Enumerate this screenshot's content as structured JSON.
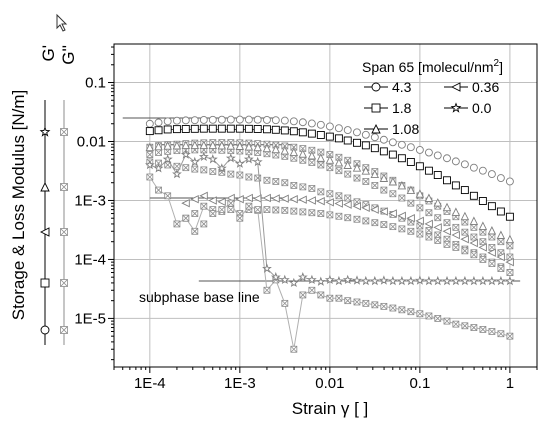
{
  "chart_data": {
    "type": "scatter",
    "xscale": "log",
    "yscale": "log",
    "xlabel": "Strain γ [ ]",
    "ylabel": "Storage & Loss Modulus [N/m]",
    "xlim": [
      4e-05,
      2
    ],
    "ylim": [
      1.5e-06,
      0.45
    ],
    "x_ticks": [
      {
        "value": 0.0001,
        "label": "1E-4"
      },
      {
        "value": 0.001,
        "label": "1E-3"
      },
      {
        "value": 0.01,
        "label": "0.01"
      },
      {
        "value": 0.1,
        "label": "0.1"
      },
      {
        "value": 1,
        "label": "1"
      }
    ],
    "y_ticks": [
      {
        "value": 1e-05,
        "label": "1E-5"
      },
      {
        "value": 0.0001,
        "label": "1E-4"
      },
      {
        "value": 0.001,
        "label": "1E-3"
      },
      {
        "value": 0.01,
        "label": "0.01"
      },
      {
        "value": 0.1,
        "label": "0.1"
      }
    ],
    "grid": true,
    "legend": {
      "title": "Span 65 [molecul/nm",
      "title_sup": "2",
      "title_end": "]",
      "placement": "top-right"
    },
    "ylegend": {
      "gp_label": "G'",
      "gpp_label": "G''"
    },
    "annotation": "subphase base line",
    "series": [
      {
        "name": "4.3",
        "marker": "circle",
        "color": "#7f7f7f",
        "Gp": {
          "x": [
            0.0001,
            0.000125,
            0.000158,
            0.0002,
            0.000251,
            0.000316,
            0.000398,
            0.000501,
            0.000631,
            0.000794,
            0.001,
            0.00126,
            0.00158,
            0.002,
            0.00251,
            0.00316,
            0.00398,
            0.00501,
            0.00631,
            0.00794,
            0.01,
            0.0126,
            0.0158,
            0.02,
            0.0251,
            0.0316,
            0.0398,
            0.0501,
            0.0631,
            0.0794,
            0.1,
            0.126,
            0.158,
            0.2,
            0.251,
            0.316,
            0.398,
            0.501,
            0.631,
            0.794,
            1
          ],
          "y": [
            0.02,
            0.021,
            0.022,
            0.0225,
            0.0228,
            0.023,
            0.0232,
            0.0233,
            0.0234,
            0.0235,
            0.0235,
            0.0235,
            0.0234,
            0.0232,
            0.023,
            0.0226,
            0.022,
            0.0212,
            0.0202,
            0.0192,
            0.018,
            0.0168,
            0.0156,
            0.0143,
            0.013,
            0.0118,
            0.0107,
            0.0097,
            0.0088,
            0.008,
            0.0072,
            0.0065,
            0.0058,
            0.0052,
            0.0046,
            0.0041,
            0.0036,
            0.0032,
            0.0028,
            0.0024,
            0.0021
          ]
        },
        "Gpp": {
          "x": [
            0.0001,
            0.000125,
            0.000158,
            0.0002,
            0.000251,
            0.000316,
            0.000398,
            0.000501,
            0.000631,
            0.000794,
            0.001,
            0.00126,
            0.00158,
            0.002,
            0.00251,
            0.00316,
            0.00398,
            0.00501,
            0.00631,
            0.00794,
            0.01,
            0.0126,
            0.0158,
            0.02,
            0.0251,
            0.0316,
            0.0398,
            0.0501,
            0.0631,
            0.0794,
            0.1,
            0.126,
            0.158,
            0.2,
            0.251,
            0.316,
            0.398,
            0.501,
            0.631,
            0.794,
            1
          ],
          "y": [
            0.008,
            0.0085,
            0.0088,
            0.009,
            0.0092,
            0.0094,
            0.0095,
            0.0096,
            0.0096,
            0.0096,
            0.0095,
            0.0094,
            0.0092,
            0.009,
            0.0087,
            0.0084,
            0.008,
            0.0076,
            0.0071,
            0.0066,
            0.006,
            0.0054,
            0.0048,
            0.0042,
            0.0036,
            0.0031,
            0.0026,
            0.0022,
            0.0018,
            0.0015,
            0.0012,
            0.00098,
            0.0008,
            0.00065,
            0.00053,
            0.00043,
            0.00035,
            0.00029,
            0.00024,
            0.0002,
            0.00017
          ]
        }
      },
      {
        "name": "1.8",
        "marker": "square",
        "color": "#000000",
        "Gp": {
          "x": [
            0.0001,
            0.000125,
            0.000158,
            0.0002,
            0.000251,
            0.000316,
            0.000398,
            0.000501,
            0.000631,
            0.000794,
            0.001,
            0.00126,
            0.00158,
            0.002,
            0.00251,
            0.00316,
            0.00398,
            0.00501,
            0.00631,
            0.00794,
            0.01,
            0.0126,
            0.0158,
            0.02,
            0.0251,
            0.0316,
            0.0398,
            0.0501,
            0.0631,
            0.0794,
            0.1,
            0.126,
            0.158,
            0.2,
            0.251,
            0.316,
            0.398,
            0.501,
            0.631,
            0.794,
            1
          ],
          "y": [
            0.015,
            0.0155,
            0.016,
            0.0162,
            0.0163,
            0.0164,
            0.0165,
            0.0165,
            0.0165,
            0.0165,
            0.0165,
            0.0164,
            0.0163,
            0.0161,
            0.0158,
            0.0154,
            0.0149,
            0.0143,
            0.0136,
            0.0129,
            0.0121,
            0.0113,
            0.0104,
            0.0095,
            0.0086,
            0.0077,
            0.0068,
            0.006,
            0.0052,
            0.0045,
            0.0038,
            0.0032,
            0.0027,
            0.0022,
            0.0018,
            0.0015,
            0.0012,
            0.00098,
            0.0008,
            0.00065,
            0.00053
          ]
        },
        "Gpp": {
          "x": [
            0.0001,
            0.000125,
            0.000158,
            0.0002,
            0.000251,
            0.000316,
            0.000398,
            0.000501,
            0.000631,
            0.000794,
            0.001,
            0.00126,
            0.00158,
            0.002,
            0.00251,
            0.00316,
            0.00398,
            0.00501,
            0.00631,
            0.00794,
            0.01,
            0.0126,
            0.0158,
            0.02,
            0.0251,
            0.0316,
            0.0398,
            0.0501,
            0.0631,
            0.0794,
            0.1,
            0.126,
            0.158,
            0.2,
            0.251,
            0.316,
            0.398,
            0.501,
            0.631,
            0.794,
            1
          ],
          "y": [
            0.006,
            0.0065,
            0.0068,
            0.007,
            0.0071,
            0.0072,
            0.0072,
            0.0072,
            0.0071,
            0.007,
            0.0069,
            0.0067,
            0.0065,
            0.0062,
            0.0059,
            0.0056,
            0.0052,
            0.0048,
            0.0044,
            0.004,
            0.0036,
            0.0032,
            0.0028,
            0.0024,
            0.0021,
            0.0018,
            0.0015,
            0.0013,
            0.0011,
            0.0009,
            0.00075,
            0.00062,
            0.00051,
            0.00042,
            0.00035,
            0.00029,
            0.00024,
            0.0002,
            0.00016,
            0.00013,
            0.00011
          ]
        }
      },
      {
        "name": "1.08",
        "marker": "triangle",
        "color": "#7f7f7f",
        "Gp": {
          "x": [
            0.0001,
            0.000125,
            0.000158,
            0.0002,
            0.000251,
            0.000316,
            0.000398,
            0.000501,
            0.000631,
            0.000794,
            0.001,
            0.00126,
            0.00158,
            0.002,
            0.00251,
            0.00316,
            0.00398,
            0.00501,
            0.00631,
            0.00794,
            0.01,
            0.0126,
            0.0158,
            0.02,
            0.0251,
            0.0316,
            0.0398,
            0.0501,
            0.0631,
            0.0794,
            0.1,
            0.126,
            0.158,
            0.2,
            0.251,
            0.316,
            0.398,
            0.501,
            0.631,
            0.794,
            1
          ],
          "y": [
            0.008,
            0.0083,
            0.0085,
            0.0086,
            0.0087,
            0.0087,
            0.0087,
            0.0087,
            0.0086,
            0.0085,
            0.0084,
            0.0082,
            0.008,
            0.0077,
            0.0074,
            0.007,
            0.0066,
            0.0062,
            0.0058,
            0.0053,
            0.0049,
            0.0044,
            0.004,
            0.0036,
            0.0032,
            0.0028,
            0.0024,
            0.0021,
            0.0018,
            0.0015,
            0.0013,
            0.0011,
            0.00092,
            0.00077,
            0.00064,
            0.00054,
            0.00045,
            0.00037,
            0.00031,
            0.00026,
            0.00022
          ]
        },
        "Gpp": {
          "x": [
            0.0001,
            0.000125,
            0.000158,
            0.0002,
            0.000251,
            0.000316,
            0.000398,
            0.000501,
            0.000631,
            0.000794,
            0.001,
            0.00126,
            0.00158,
            0.002,
            0.00251,
            0.00316,
            0.00398,
            0.00501,
            0.00631,
            0.00794,
            0.01,
            0.0126,
            0.0158,
            0.02,
            0.0251,
            0.0316,
            0.0398,
            0.0501,
            0.0631,
            0.0794,
            0.1,
            0.126,
            0.158,
            0.2,
            0.251,
            0.316,
            0.398,
            0.501,
            0.631,
            0.794,
            1
          ],
          "y": [
            0.0045,
            0.0043,
            0.004,
            0.0038,
            0.0036,
            0.0034,
            0.0033,
            0.0031,
            0.003,
            0.0028,
            0.0027,
            0.0025,
            0.0024,
            0.0022,
            0.0021,
            0.002,
            0.0018,
            0.0017,
            0.0016,
            0.0014,
            0.0013,
            0.0012,
            0.0011,
            0.00095,
            0.00085,
            0.00075,
            0.00066,
            0.00058,
            0.0005,
            0.00043,
            0.00037,
            0.00031,
            0.00026,
            0.00022,
            0.00018,
            0.00015,
            0.00013,
            0.00011,
            9e-05,
            7.5e-05,
            6e-05
          ]
        }
      },
      {
        "name": "0.36",
        "marker": "left-triangle",
        "color": "#7f7f7f",
        "Gp": {
          "x": [
            0.000251,
            0.000316,
            0.000398,
            0.000501,
            0.000631,
            0.000794,
            0.001,
            0.00126,
            0.00158,
            0.002,
            0.00251,
            0.00316,
            0.00398,
            0.00501,
            0.00631,
            0.00794,
            0.01,
            0.0126,
            0.0158,
            0.02,
            0.0251,
            0.0316,
            0.0398,
            0.0501,
            0.0631,
            0.0794,
            0.1,
            0.126,
            0.158,
            0.2,
            0.251,
            0.316,
            0.398,
            0.501,
            0.631,
            0.794,
            1
          ],
          "y": [
            0.0009,
            0.00105,
            0.0012,
            0.001,
            0.00095,
            0.0011,
            0.00105,
            0.0011,
            0.00108,
            0.0011,
            0.00108,
            0.00107,
            0.00105,
            0.00103,
            0.001,
            0.00097,
            0.00093,
            0.00089,
            0.00085,
            0.0008,
            0.00075,
            0.0007,
            0.00065,
            0.0006,
            0.00055,
            0.0005,
            0.00045,
            0.0004,
            0.00035,
            0.0003,
            0.00026,
            0.00022,
            0.00019,
            0.00016,
            0.00013,
            0.00011,
            9e-05
          ]
        },
        "Gpp": {
          "x": [
            0.000251,
            0.000316,
            0.000398,
            0.000501,
            0.000631,
            0.000794,
            0.001,
            0.00126,
            0.00158,
            0.002,
            0.00251,
            0.00316,
            0.00398,
            0.00501,
            0.00631,
            0.00794,
            0.01,
            0.0126,
            0.0158,
            0.02,
            0.0251,
            0.0316,
            0.0398,
            0.0501,
            0.0631,
            0.0794,
            0.1,
            0.126,
            0.158,
            0.2,
            0.251,
            0.316,
            0.398,
            0.501,
            0.631,
            0.794,
            1
          ],
          "y": [
            0.0005,
            0.0006,
            0.0004,
            0.0007,
            0.00065,
            0.0007,
            0.0006,
            0.0007,
            0.00068,
            0.0007,
            0.00069,
            0.00068,
            0.00066,
            0.00064,
            0.00062,
            0.0006,
            0.00057,
            0.00054,
            0.00051,
            0.00048,
            0.00045,
            0.00042,
            0.00039,
            0.00036,
            0.00033,
            0.0003,
            0.00027,
            0.00024,
            0.00021,
            0.00018,
            0.00016,
            0.00014,
            0.00012,
            0.0001,
            8.5e-05,
            7e-05,
            6e-05
          ]
        }
      },
      {
        "name": "0.0",
        "marker": "star",
        "color": "#7f7f7f",
        "Gp": {
          "x": [
            0.0001,
            0.000125,
            0.000158,
            0.0002,
            0.000251,
            0.000316,
            0.000398,
            0.000501,
            0.000631,
            0.000794,
            0.001,
            0.00126,
            0.00158,
            0.002,
            0.00251,
            0.00316,
            0.00398,
            0.00501,
            0.00631,
            0.00794,
            0.01,
            0.0126,
            0.0158,
            0.02,
            0.0251,
            0.0316,
            0.0398,
            0.0501,
            0.0631,
            0.0794,
            0.1,
            0.126,
            0.158,
            0.2,
            0.251,
            0.316,
            0.398,
            0.501,
            0.631,
            0.794,
            1
          ],
          "y": [
            0.004,
            0.0035,
            0.005,
            0.0028,
            0.006,
            0.0045,
            0.0055,
            0.005,
            0.0035,
            0.0052,
            0.0042,
            0.005,
            0.0045,
            7e-05,
            5e-05,
            4.5e-05,
            4e-05,
            5e-05,
            4.5e-05,
            4.2e-05,
            4.5e-05,
            4.3e-05,
            4.5e-05,
            4.4e-05,
            4.3e-05,
            4.3e-05,
            4.4e-05,
            4.3e-05,
            4.3e-05,
            4.3e-05,
            4.4e-05,
            4.3e-05,
            4.3e-05,
            4.3e-05,
            4.3e-05,
            4.3e-05,
            4.3e-05,
            4.3e-05,
            4.3e-05,
            4.3e-05,
            4.3e-05
          ]
        },
        "Gpp": {
          "x": [
            0.0001,
            0.000125,
            0.000158,
            0.0002,
            0.000251,
            0.000316,
            0.000398,
            0.000501,
            0.000631,
            0.000794,
            0.001,
            0.00126,
            0.00158,
            0.002,
            0.00251,
            0.00316,
            0.00398,
            0.00501,
            0.00631,
            0.00794,
            0.01,
            0.0126,
            0.0158,
            0.02,
            0.0251,
            0.0316,
            0.0398,
            0.0501,
            0.0631,
            0.0794,
            0.1,
            0.126,
            0.158,
            0.2,
            0.251,
            0.316,
            0.398,
            0.501,
            0.631,
            0.794,
            1
          ],
          "y": [
            0.0025,
            0.0015,
            0.0012,
            0.0004,
            0.0005,
            0.0003,
            0.0008,
            0.0006,
            0.0007,
            0.0009,
            0.0005,
            0.0008,
            0.0007,
            3e-05,
            4.5e-05,
            1.8e-05,
            3e-06,
            2.5e-05,
            3e-05,
            2.5e-05,
            2.2e-05,
            2.2e-05,
            2e-05,
            1.9e-05,
            1.8e-05,
            1.7e-05,
            1.6e-05,
            1.5e-05,
            1.4e-05,
            1.3e-05,
            1.2e-05,
            1.1e-05,
            1e-05,
            9e-06,
            8e-06,
            7.5e-06,
            7e-06,
            6.5e-06,
            6e-06,
            5.5e-06,
            5e-06
          ]
        }
      }
    ],
    "base_lines": [
      {
        "x": [
          5e-05,
          0.0025
        ],
        "y": [
          0.025,
          0.025
        ]
      },
      {
        "x": [
          0.00015,
          0.005
        ],
        "y": [
          0.016,
          0.016
        ]
      },
      {
        "x": [
          0.00012,
          0.004
        ],
        "y": [
          0.0088,
          0.0088
        ]
      },
      {
        "x": [
          0.0001,
          0.003
        ],
        "y": [
          0.0011,
          0.0011
        ]
      },
      {
        "x": [
          0.00035,
          1.3
        ],
        "y": [
          4.3e-05,
          4.3e-05
        ]
      }
    ]
  }
}
